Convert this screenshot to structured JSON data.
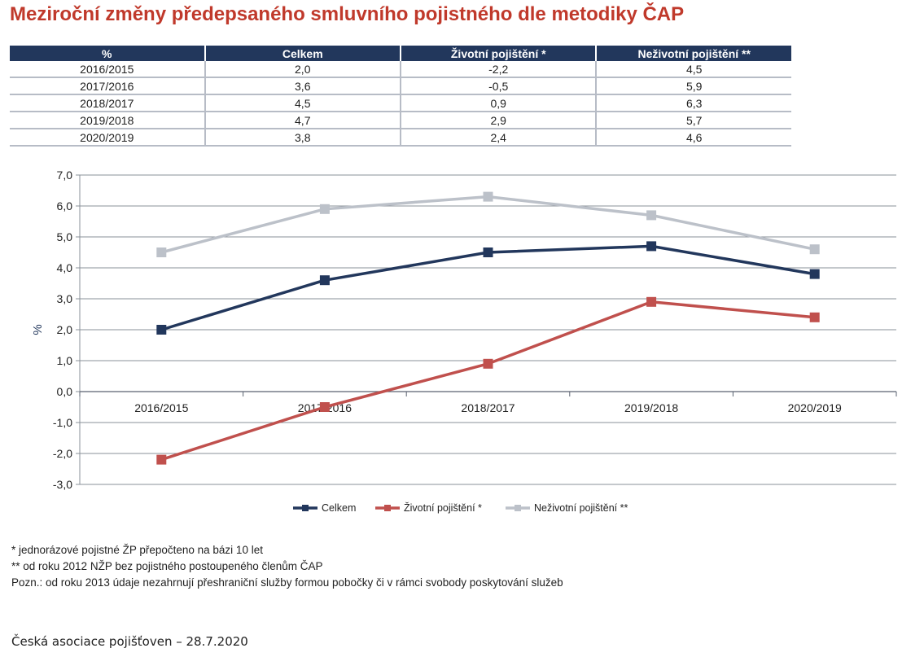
{
  "title": "Meziroční změny předepsaného smluvního pojistného dle metodiky ČAP",
  "table": {
    "headers": [
      "%",
      "Celkem",
      "Životní pojištění *",
      "Neživotní pojištění **"
    ],
    "rows": [
      [
        "2016/2015",
        "2,0",
        "-2,2",
        "4,5"
      ],
      [
        "2017/2016",
        "3,6",
        "-0,5",
        "5,9"
      ],
      [
        "2018/2017",
        "4,5",
        "0,9",
        "6,3"
      ],
      [
        "2019/2018",
        "4,7",
        "2,9",
        "5,7"
      ],
      [
        "2020/2019",
        "3,8",
        "2,4",
        "4,6"
      ]
    ]
  },
  "chart_data": {
    "type": "line",
    "categories": [
      "2016/2015",
      "2017/2016",
      "2018/2017",
      "2019/2018",
      "2020/2019"
    ],
    "series": [
      {
        "name": "Celkem",
        "values": [
          2.0,
          3.6,
          4.5,
          4.7,
          3.8
        ],
        "color": "#22375c"
      },
      {
        "name": "Životní pojištění *",
        "values": [
          -2.2,
          -0.5,
          0.9,
          2.9,
          2.4
        ],
        "color": "#c0504d"
      },
      {
        "name": "Neživotní pojištění **",
        "values": [
          4.5,
          5.9,
          6.3,
          5.7,
          4.6
        ],
        "color": "#bcc1c9"
      }
    ],
    "ylabel": "%",
    "ylim": [
      -3.0,
      7.0
    ],
    "yticks": [
      7.0,
      6.0,
      5.0,
      4.0,
      3.0,
      2.0,
      1.0,
      0.0,
      -1.0,
      -2.0,
      -3.0
    ],
    "ytick_labels": [
      "7,0",
      "6,0",
      "5,0",
      "4,0",
      "3,0",
      "2,0",
      "1,0",
      "0,0",
      "-1,0",
      "-2,0",
      "-3,0"
    ],
    "grid": true,
    "legend": "bottom"
  },
  "notes": [
    "* jednorázové pojistné ŽP přepočteno na bázi 10 let",
    "** od roku 2012 NŽP bez pojistného postoupeného členům ČAP",
    "Pozn.: od roku 2013 údaje nezahrnují přeshraniční služby formou pobočky či v rámci svobody poskytování služeb"
  ],
  "footer": "Česká asociace pojišťoven – 28.7.2020"
}
